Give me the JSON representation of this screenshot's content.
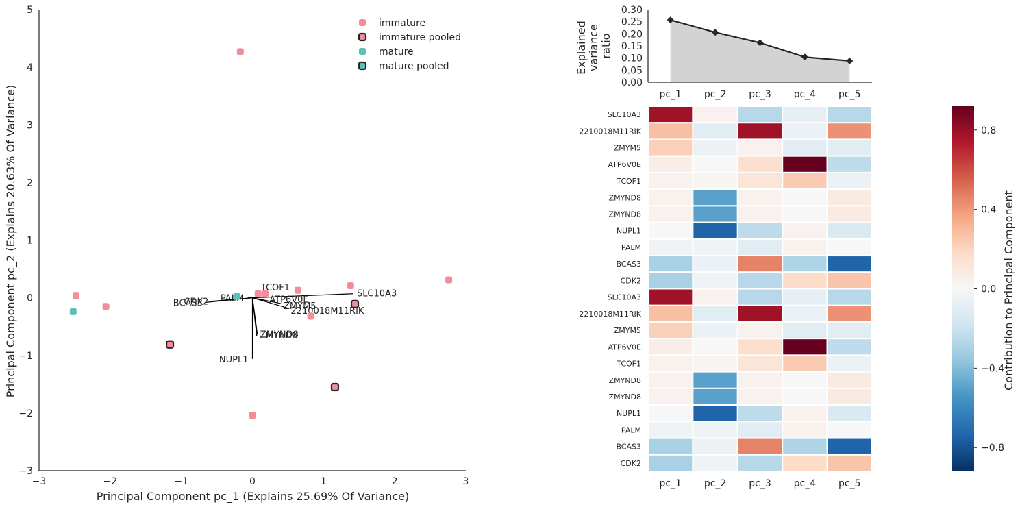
{
  "chart_data": [
    {
      "type": "scatter",
      "xlabel": "Principal Component pc_1 (Explains 25.69% Of Variance)",
      "ylabel": "Principal Component pc_2 (Explains 20.63% Of Variance)",
      "xlim": [
        -3,
        3
      ],
      "ylim": [
        -3,
        5
      ],
      "xticks": [
        "−3",
        "−2",
        "−1",
        "0",
        "1",
        "2",
        "3"
      ],
      "yticks": [
        "−3",
        "−2",
        "−1",
        "0",
        "1",
        "2",
        "3",
        "4",
        "5"
      ],
      "legend_position": "top-right",
      "colors": {
        "immature": "#f28e9c",
        "mature": "#5cbfb8",
        "pooled_edge": "#262626"
      },
      "legend": [
        "immature",
        "immature pooled",
        "mature",
        "mature pooled"
      ],
      "series": [
        {
          "name": "immature",
          "points": [
            [
              -0.17,
              4.27
            ],
            [
              -2.48,
              0.04
            ],
            [
              -2.06,
              -0.15
            ],
            [
              0.08,
              0.07
            ],
            [
              0.18,
              0.07
            ],
            [
              0.64,
              0.13
            ],
            [
              1.38,
              0.21
            ],
            [
              0.82,
              -0.32
            ],
            [
              2.76,
              0.31
            ],
            [
              0.0,
              -2.04
            ]
          ]
        },
        {
          "name": "immature pooled",
          "points": [
            [
              -1.16,
              -0.81
            ],
            [
              1.44,
              -0.11
            ],
            [
              1.16,
              -1.55
            ]
          ]
        },
        {
          "name": "mature",
          "points": [
            [
              -0.22,
              0.02
            ],
            [
              -2.52,
              -0.24
            ]
          ]
        },
        {
          "name": "mature pooled",
          "points": []
        }
      ],
      "loadings": [
        {
          "label": "SLC10A3",
          "x": 1.42,
          "y": 0.07
        },
        {
          "label": "TCOF1",
          "x": 0.08,
          "y": 0.02
        },
        {
          "label": "ATP6V0E",
          "x": 0.2,
          "y": -0.06
        },
        {
          "label": "ZMYM5",
          "x": 0.4,
          "y": -0.1
        },
        {
          "label": "2210018M11RIK",
          "x": 0.5,
          "y": -0.18
        },
        {
          "label": "ZMYND8",
          "x": 0.07,
          "y": -0.64
        },
        {
          "label": "ZMYND8",
          "x": 0.06,
          "y": -0.66
        },
        {
          "label": "NUPL1",
          "x": 0.0,
          "y": -1.06
        },
        {
          "label": "PALM",
          "x": -0.06,
          "y": 0.0
        },
        {
          "label": "BCAS3",
          "x": -0.66,
          "y": -0.08
        },
        {
          "label": "CDK2",
          "x": -0.58,
          "y": -0.06
        }
      ]
    },
    {
      "type": "area",
      "ylabel": "Explained variance ratio",
      "categories": [
        "pc_1",
        "pc_2",
        "pc_3",
        "pc_4",
        "pc_5"
      ],
      "values": [
        0.257,
        0.206,
        0.163,
        0.104,
        0.088
      ],
      "ylim": [
        0,
        0.3
      ],
      "yticks": [
        "0.00",
        "0.05",
        "0.10",
        "0.15",
        "0.20",
        "0.25",
        "0.30"
      ]
    },
    {
      "type": "heatmap",
      "columns": [
        "pc_1",
        "pc_2",
        "pc_3",
        "pc_4",
        "pc_5"
      ],
      "rows": [
        "SLC10A3",
        "2210018M11RIK",
        "ZMYM5",
        "ATP6V0E",
        "TCOF1",
        "ZMYND8",
        "ZMYND8",
        "NUPL1",
        "PALM",
        "BCAS3",
        "CDK2",
        "SLC10A3",
        "2210018M11RIK",
        "ZMYM5",
        "ATP6V0E",
        "TCOF1",
        "ZMYND8",
        "ZMYND8",
        "NUPL1",
        "PALM",
        "BCAS3",
        "CDK2"
      ],
      "values": [
        [
          0.78,
          0.04,
          -0.26,
          -0.08,
          -0.26
        ],
        [
          0.28,
          -0.1,
          0.78,
          -0.06,
          0.42
        ],
        [
          0.22,
          -0.06,
          0.04,
          -0.1,
          -0.1
        ],
        [
          0.06,
          0.0,
          0.16,
          0.92,
          -0.24
        ],
        [
          0.04,
          0.02,
          0.12,
          0.24,
          -0.06
        ],
        [
          0.04,
          -0.5,
          0.04,
          0.0,
          0.08
        ],
        [
          0.04,
          -0.5,
          0.04,
          0.0,
          0.08
        ],
        [
          0.0,
          -0.74,
          -0.24,
          0.04,
          -0.14
        ],
        [
          -0.04,
          -0.04,
          -0.1,
          0.04,
          0.0
        ],
        [
          -0.3,
          -0.06,
          0.46,
          -0.28,
          -0.74
        ],
        [
          -0.3,
          -0.04,
          -0.26,
          0.18,
          0.26
        ],
        [
          0.78,
          0.04,
          -0.26,
          -0.08,
          -0.26
        ],
        [
          0.28,
          -0.1,
          0.78,
          -0.06,
          0.42
        ],
        [
          0.22,
          -0.06,
          0.04,
          -0.1,
          -0.1
        ],
        [
          0.06,
          0.0,
          0.16,
          0.92,
          -0.24
        ],
        [
          0.04,
          0.02,
          0.12,
          0.24,
          -0.06
        ],
        [
          0.04,
          -0.5,
          0.04,
          0.0,
          0.08
        ],
        [
          0.04,
          -0.5,
          0.04,
          0.0,
          0.08
        ],
        [
          0.0,
          -0.74,
          -0.24,
          0.04,
          -0.14
        ],
        [
          -0.04,
          -0.04,
          -0.1,
          0.04,
          0.0
        ],
        [
          -0.3,
          -0.06,
          0.46,
          -0.28,
          -0.74
        ],
        [
          -0.3,
          -0.04,
          -0.26,
          0.18,
          0.26
        ]
      ],
      "colorbar": {
        "label": "Contribution to Principal Component",
        "range": [
          -0.92,
          0.92
        ],
        "ticks": [
          0.8,
          0.4,
          0.0,
          -0.4,
          -0.8
        ],
        "tick_labels": [
          "0.8",
          "0.4",
          "0.0",
          "−0.4",
          "−0.8"
        ],
        "colormap": "RdBu_r"
      }
    }
  ]
}
